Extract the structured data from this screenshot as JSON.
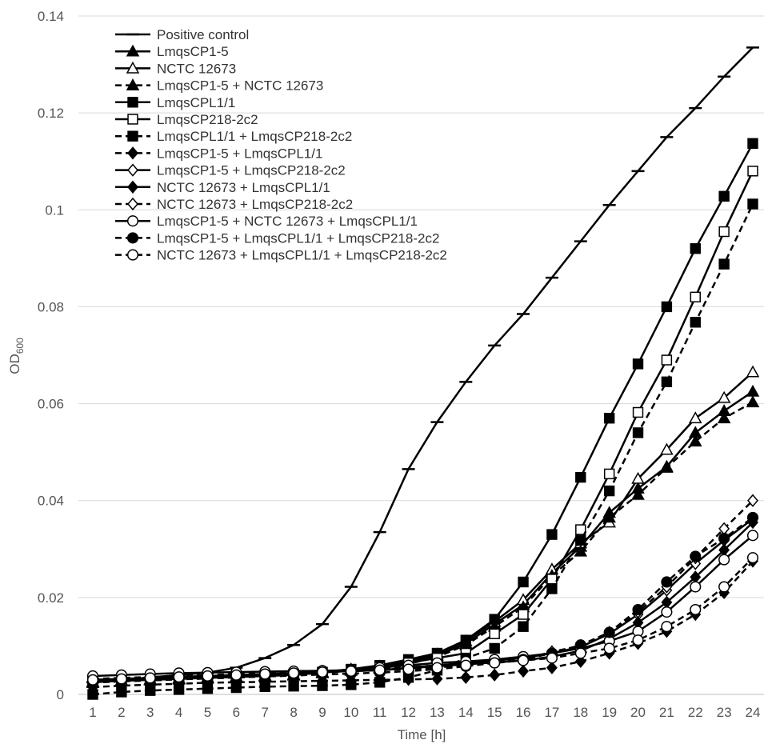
{
  "chart_data": {
    "type": "line",
    "title": "",
    "xlabel": "Time [h]",
    "ylabel": "OD",
    "ylabel_subscript": "600",
    "ylim": [
      0,
      0.14
    ],
    "yticks": [
      "0",
      "0.02",
      "0.04",
      "0.06",
      "0.08",
      "0.1",
      "0.12",
      "0.14"
    ],
    "ytick_values": [
      0,
      0.02,
      0.04,
      0.06,
      0.08,
      0.1,
      0.12,
      0.14
    ],
    "x": [
      1,
      2,
      3,
      4,
      5,
      6,
      7,
      8,
      9,
      10,
      11,
      12,
      13,
      14,
      15,
      16,
      17,
      18,
      19,
      20,
      21,
      22,
      23,
      24
    ],
    "grid": true,
    "legend_position": "top-left",
    "series": [
      {
        "name": "Positive control",
        "marker": "dash",
        "fill": "black",
        "dashed": false,
        "values": [
          0.0025,
          0.003,
          0.0035,
          0.004,
          0.0045,
          0.0055,
          0.0075,
          0.0102,
          0.0145,
          0.0222,
          0.0335,
          0.0465,
          0.0562,
          0.0645,
          0.072,
          0.0785,
          0.086,
          0.0935,
          0.101,
          0.108,
          0.115,
          0.121,
          0.1275,
          0.1335
        ]
      },
      {
        "name": "LmqsCP1-5",
        "marker": "triangle",
        "fill": "black",
        "dashed": false,
        "values": [
          0.0025,
          0.0028,
          0.003,
          0.0032,
          0.0034,
          0.0036,
          0.0038,
          0.004,
          0.0045,
          0.005,
          0.0055,
          0.0065,
          0.008,
          0.0105,
          0.0145,
          0.0185,
          0.025,
          0.0305,
          0.0375,
          0.0425,
          0.047,
          0.054,
          0.0585,
          0.0625
        ]
      },
      {
        "name": "NCTC 12673",
        "marker": "triangle",
        "fill": "white",
        "dashed": false,
        "values": [
          0.0026,
          0.0029,
          0.0031,
          0.0033,
          0.0035,
          0.0037,
          0.0039,
          0.0041,
          0.0046,
          0.0052,
          0.0058,
          0.0068,
          0.0083,
          0.011,
          0.015,
          0.0195,
          0.0258,
          0.0312,
          0.0355,
          0.0445,
          0.0505,
          0.057,
          0.0612,
          0.0665
        ]
      },
      {
        "name": "LmqsCP1-5 + NCTC 12673",
        "marker": "triangle",
        "fill": "black",
        "dashed": true,
        "values": [
          0.0024,
          0.0027,
          0.0029,
          0.0031,
          0.0033,
          0.0035,
          0.0037,
          0.0039,
          0.0044,
          0.0049,
          0.0053,
          0.0063,
          0.0077,
          0.0102,
          0.014,
          0.018,
          0.0245,
          0.0295,
          0.0365,
          0.0412,
          0.0468,
          0.0522,
          0.057,
          0.0603
        ]
      },
      {
        "name": "LmqsCPL1/1",
        "marker": "square",
        "fill": "black",
        "dashed": false,
        "values": [
          0.0028,
          0.003,
          0.0032,
          0.0034,
          0.0036,
          0.0038,
          0.004,
          0.0042,
          0.0046,
          0.0052,
          0.006,
          0.0072,
          0.0085,
          0.0112,
          0.0155,
          0.0232,
          0.033,
          0.0448,
          0.057,
          0.0682,
          0.08,
          0.092,
          0.1028,
          0.1137
        ]
      },
      {
        "name": "LmqsCP218-2c2",
        "marker": "square",
        "fill": "white",
        "dashed": false,
        "values": [
          0.0027,
          0.0029,
          0.0031,
          0.0033,
          0.0035,
          0.0037,
          0.0039,
          0.0041,
          0.0045,
          0.005,
          0.0056,
          0.0065,
          0.0075,
          0.0085,
          0.0125,
          0.0165,
          0.0238,
          0.034,
          0.0455,
          0.0582,
          0.069,
          0.082,
          0.0955,
          0.108
        ]
      },
      {
        "name": "LmqsCPL1/1 + LmqsCP218-2c2",
        "marker": "square",
        "fill": "black",
        "dashed": true,
        "values": [
          0.0,
          0.0005,
          0.0008,
          0.001,
          0.0012,
          0.0014,
          0.0016,
          0.0017,
          0.0018,
          0.002,
          0.0025,
          0.0035,
          0.005,
          0.0075,
          0.0095,
          0.014,
          0.0218,
          0.0318,
          0.042,
          0.054,
          0.0645,
          0.0768,
          0.0888,
          0.1012
        ]
      },
      {
        "name": "LmqsCP1-5 + LmqsCPL1/1",
        "marker": "diamond",
        "fill": "black",
        "dashed": true,
        "values": [
          0.0015,
          0.0018,
          0.002,
          0.0022,
          0.0024,
          0.0025,
          0.0026,
          0.0027,
          0.0028,
          0.0029,
          0.003,
          0.0031,
          0.0032,
          0.0035,
          0.004,
          0.0048,
          0.0055,
          0.0068,
          0.0085,
          0.0105,
          0.013,
          0.0165,
          0.021,
          0.0275
        ]
      },
      {
        "name": "LmqsCP1-5 + LmqsCP218-2c2",
        "marker": "diamond",
        "fill": "white",
        "dashed": false,
        "values": [
          0.003,
          0.0032,
          0.0034,
          0.0036,
          0.0038,
          0.004,
          0.0042,
          0.0044,
          0.0046,
          0.0048,
          0.005,
          0.0055,
          0.006,
          0.0065,
          0.007,
          0.0075,
          0.0085,
          0.0098,
          0.0125,
          0.0165,
          0.0215,
          0.027,
          0.0318,
          0.0362
        ]
      },
      {
        "name": "NCTC 12673 + LmqsCPL1/1",
        "marker": "diamond",
        "fill": "black",
        "dashed": false,
        "values": [
          0.003,
          0.0032,
          0.0034,
          0.0036,
          0.0038,
          0.004,
          0.0042,
          0.0044,
          0.0046,
          0.0048,
          0.005,
          0.0054,
          0.0058,
          0.0062,
          0.0066,
          0.007,
          0.0078,
          0.009,
          0.0115,
          0.0148,
          0.019,
          0.0242,
          0.0298,
          0.0355
        ]
      },
      {
        "name": "NCTC 12673 + LmqsCP218-2c2",
        "marker": "diamond",
        "fill": "white",
        "dashed": true,
        "values": [
          0.0032,
          0.0034,
          0.0036,
          0.0038,
          0.004,
          0.0042,
          0.0044,
          0.0046,
          0.0048,
          0.005,
          0.0052,
          0.0056,
          0.006,
          0.0064,
          0.0068,
          0.0072,
          0.0088,
          0.01,
          0.0128,
          0.017,
          0.0222,
          0.0282,
          0.0342,
          0.04
        ]
      },
      {
        "name": "LmqsCP1-5 + NCTC 12673 + LmqsCPL1/1",
        "marker": "circle",
        "fill": "white",
        "dashed": false,
        "values": [
          0.0038,
          0.004,
          0.0042,
          0.0044,
          0.0045,
          0.0046,
          0.0047,
          0.0048,
          0.0049,
          0.005,
          0.0055,
          0.006,
          0.0065,
          0.0068,
          0.0072,
          0.0078,
          0.0085,
          0.0095,
          0.011,
          0.013,
          0.017,
          0.0222,
          0.0278,
          0.0328
        ]
      },
      {
        "name": "LmqsCP1-5 + LmqsCPL1/1 + LmqsCP218-2c2",
        "marker": "circle",
        "fill": "black",
        "dashed": true,
        "values": [
          0.0025,
          0.0027,
          0.0029,
          0.0031,
          0.0033,
          0.0035,
          0.0037,
          0.0039,
          0.0041,
          0.0043,
          0.0045,
          0.0048,
          0.0052,
          0.0058,
          0.0065,
          0.0072,
          0.0085,
          0.0102,
          0.0128,
          0.0175,
          0.0232,
          0.0285,
          0.0322,
          0.0365
        ]
      },
      {
        "name": "NCTC 12673 + LmqsCPL1/1 + LmqsCP218-2c2",
        "marker": "circle",
        "fill": "white",
        "dashed": true,
        "values": [
          0.003,
          0.0032,
          0.0034,
          0.0036,
          0.0038,
          0.004,
          0.0042,
          0.0044,
          0.0046,
          0.0048,
          0.005,
          0.0052,
          0.0055,
          0.006,
          0.0065,
          0.007,
          0.0075,
          0.0085,
          0.0095,
          0.0112,
          0.014,
          0.0175,
          0.0222,
          0.0282
        ]
      }
    ]
  }
}
